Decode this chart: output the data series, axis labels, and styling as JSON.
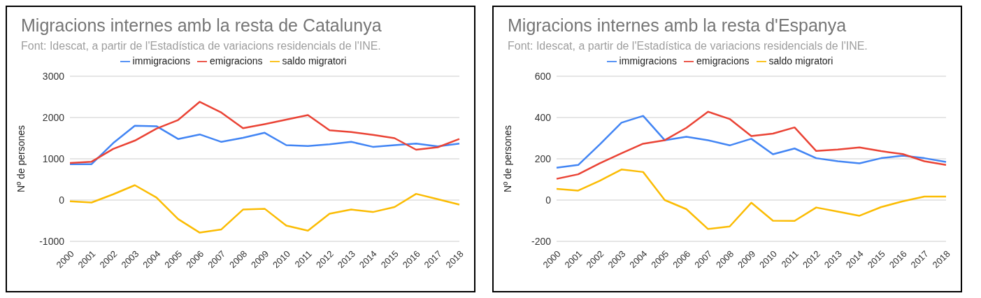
{
  "chart_data": [
    {
      "type": "line",
      "title": "Migracions internes amb la resta de Catalunya",
      "subtitle": "Font: Idescat, a partir de l'Estadística de variacions residencials de l'INE.",
      "ylabel": "Nº de persones",
      "categories": [
        "2000",
        "2001",
        "2002",
        "2003",
        "2004",
        "2005",
        "2006",
        "2007",
        "2008",
        "2009",
        "2010",
        "2011",
        "2012",
        "2013",
        "2014",
        "2015",
        "2016",
        "2017",
        "2018"
      ],
      "series": [
        {
          "name": "immigracions",
          "color": "#4285f4",
          "values": [
            870,
            870,
            1380,
            1800,
            1790,
            1480,
            1590,
            1410,
            1510,
            1630,
            1330,
            1310,
            1350,
            1410,
            1290,
            1330,
            1370,
            1300,
            1370
          ]
        },
        {
          "name": "emigracions",
          "color": "#ea4335",
          "values": [
            900,
            930,
            1240,
            1440,
            1730,
            1940,
            2380,
            2120,
            1740,
            1840,
            1950,
            2060,
            1690,
            1650,
            1580,
            1500,
            1220,
            1280,
            1480
          ]
        },
        {
          "name": "saldo migratori",
          "color": "#fbbc04",
          "values": [
            -30,
            -60,
            140,
            360,
            60,
            -460,
            -790,
            -710,
            -230,
            -210,
            -620,
            -740,
            -330,
            -230,
            -290,
            -170,
            150,
            20,
            -110
          ]
        }
      ],
      "ylim": [
        -1000,
        3000
      ],
      "yticks": [
        -1000,
        0,
        1000,
        2000,
        3000
      ],
      "grid": "y",
      "legend": "top",
      "marker": "none",
      "line_style": "solid"
    },
    {
      "type": "line",
      "title": "Migracions internes amb la resta d'Espanya",
      "subtitle": "Font: Idescat, a partir de l'Estadística de variacions residencials de l'INE.",
      "ylabel": "Nº de persones",
      "categories": [
        "2000",
        "2001",
        "2002",
        "2003",
        "2004",
        "2005",
        "2006",
        "2007",
        "2008",
        "2009",
        "2010",
        "2011",
        "2012",
        "2013",
        "2014",
        "2015",
        "2016",
        "2017",
        "2018"
      ],
      "series": [
        {
          "name": "immigracions",
          "color": "#4285f4",
          "values": [
            157,
            170,
            270,
            375,
            408,
            290,
            307,
            290,
            265,
            297,
            222,
            250,
            203,
            188,
            178,
            203,
            215,
            203,
            185
          ]
        },
        {
          "name": "emigracions",
          "color": "#ea4335",
          "values": [
            103,
            125,
            178,
            227,
            273,
            290,
            350,
            428,
            393,
            310,
            322,
            352,
            238,
            245,
            255,
            237,
            223,
            188,
            170
          ]
        },
        {
          "name": "saldo migratori",
          "color": "#fbbc04",
          "values": [
            54,
            46,
            94,
            148,
            136,
            0,
            -44,
            -140,
            -128,
            -13,
            -100,
            -101,
            -36,
            -56,
            -76,
            -34,
            -6,
            17,
            17
          ]
        }
      ],
      "ylim": [
        -200,
        600
      ],
      "yticks": [
        -200,
        0,
        200,
        400,
        600
      ],
      "grid": "y",
      "legend": "top",
      "marker": "none",
      "line_style": "solid"
    }
  ]
}
